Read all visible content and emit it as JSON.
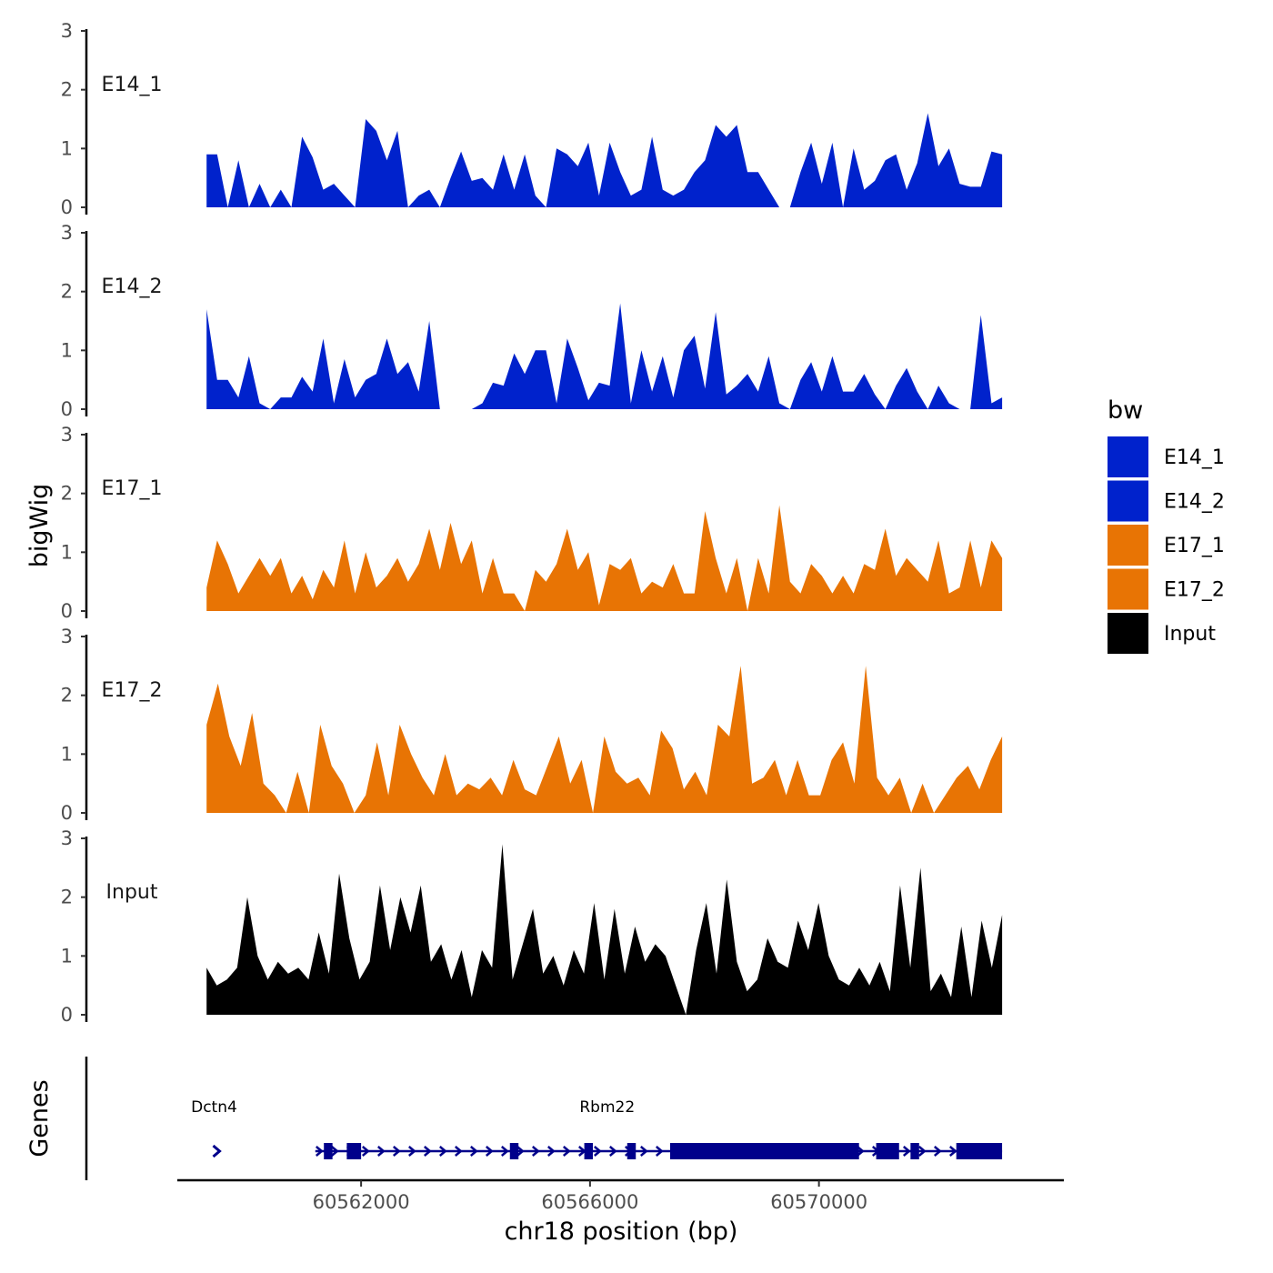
{
  "chart_data": {
    "type": "area",
    "y_axis_title": "bigWig",
    "x_axis_title": "chr18 position (bp)",
    "xlim": [
      60558900,
      60574200
    ],
    "x_ticks": [
      60562000,
      60566000,
      60570000
    ],
    "x_tick_labels": [
      "60562000",
      "60566000",
      "60570000"
    ],
    "y_ticks": [
      0,
      1,
      2,
      3
    ],
    "y_tick_labels": [
      "0",
      "1",
      "2",
      "3"
    ],
    "ylim": [
      0,
      3
    ],
    "data_x_range": [
      60559300,
      60573200
    ],
    "legend": {
      "title": "bw",
      "entries": [
        {
          "label": "E14_1",
          "color": "#0022CC"
        },
        {
          "label": "E14_2",
          "color": "#0022CC"
        },
        {
          "label": "E17_1",
          "color": "#E87404"
        },
        {
          "label": "E17_2",
          "color": "#E87404"
        },
        {
          "label": "Input",
          "color": "#000000"
        }
      ]
    },
    "tracks": [
      {
        "name": "E14_1",
        "color": "#0022CC",
        "values": [
          0.9,
          0.9,
          0,
          0.8,
          0,
          0.4,
          0,
          0.3,
          0,
          1.2,
          0.85,
          0.3,
          0.4,
          0.2,
          0,
          1.5,
          1.3,
          0.8,
          1.3,
          0,
          0.2,
          0.3,
          0,
          0.5,
          0.95,
          0.45,
          0.5,
          0.3,
          0.9,
          0.3,
          0.9,
          0.2,
          0,
          1.0,
          0.9,
          0.7,
          1.1,
          0.2,
          1.1,
          0.6,
          0.2,
          0.3,
          1.2,
          0.3,
          0.2,
          0.3,
          0.6,
          0.8,
          1.4,
          1.2,
          1.4,
          0.6,
          0.6,
          0.3,
          0,
          0,
          0.6,
          1.1,
          0.4,
          1.1,
          0,
          1.0,
          0.3,
          0.45,
          0.8,
          0.9,
          0.3,
          0.75,
          1.6,
          0.7,
          1.0,
          0.4,
          0.35,
          0.35,
          0.95,
          0.9
        ]
      },
      {
        "name": "E14_2",
        "color": "#0022CC",
        "values": [
          1.7,
          0.5,
          0.5,
          0.2,
          0.9,
          0.1,
          0,
          0.2,
          0.2,
          0.55,
          0.3,
          1.2,
          0.1,
          0.85,
          0.2,
          0.5,
          0.6,
          1.2,
          0.6,
          0.8,
          0.3,
          1.5,
          0,
          0,
          0,
          0,
          0.1,
          0.45,
          0.4,
          0.95,
          0.6,
          1.0,
          1.0,
          0.1,
          1.2,
          0.7,
          0.15,
          0.45,
          0.4,
          1.8,
          0.1,
          1.0,
          0.3,
          0.9,
          0.2,
          1.0,
          1.25,
          0.35,
          1.65,
          0.25,
          0.4,
          0.6,
          0.3,
          0.9,
          0.1,
          0,
          0.5,
          0.8,
          0.3,
          0.9,
          0.3,
          0.3,
          0.6,
          0.25,
          0,
          0.4,
          0.7,
          0.3,
          0,
          0.4,
          0.1,
          0,
          0,
          1.6,
          0.1,
          0.2
        ]
      },
      {
        "name": "E17_1",
        "color": "#E87404",
        "values": [
          0.4,
          1.2,
          0.8,
          0.3,
          0.6,
          0.9,
          0.6,
          0.9,
          0.3,
          0.6,
          0.2,
          0.7,
          0.4,
          1.2,
          0.3,
          1.0,
          0.4,
          0.6,
          0.9,
          0.5,
          0.8,
          1.4,
          0.7,
          1.5,
          0.8,
          1.2,
          0.3,
          0.9,
          0.3,
          0.3,
          0,
          0.7,
          0.5,
          0.8,
          1.4,
          0.7,
          1.0,
          0.1,
          0.8,
          0.7,
          0.9,
          0.3,
          0.5,
          0.4,
          0.8,
          0.3,
          0.3,
          1.7,
          0.9,
          0.3,
          0.9,
          0,
          0.9,
          0.3,
          1.8,
          0.5,
          0.3,
          0.8,
          0.6,
          0.3,
          0.6,
          0.3,
          0.8,
          0.7,
          1.4,
          0.6,
          0.9,
          0.7,
          0.5,
          1.2,
          0.3,
          0.4,
          1.2,
          0.4,
          1.2,
          0.9
        ]
      },
      {
        "name": "E17_2",
        "color": "#E87404",
        "values": [
          1.5,
          2.2,
          1.3,
          0.8,
          1.7,
          0.5,
          0.3,
          0,
          0.7,
          0,
          1.5,
          0.8,
          0.5,
          0,
          0.3,
          1.2,
          0.3,
          1.5,
          1.0,
          0.6,
          0.3,
          1.0,
          0.3,
          0.5,
          0.4,
          0.6,
          0.3,
          0.9,
          0.4,
          0.3,
          0.8,
          1.3,
          0.5,
          0.9,
          0,
          1.3,
          0.7,
          0.5,
          0.6,
          0.3,
          1.4,
          1.1,
          0.4,
          0.7,
          0.3,
          1.5,
          1.3,
          2.5,
          0.5,
          0.6,
          0.9,
          0.3,
          0.9,
          0.3,
          0.3,
          0.9,
          1.2,
          0.5,
          2.5,
          0.6,
          0.3,
          0.6,
          0,
          0.5,
          0,
          0.3,
          0.6,
          0.8,
          0.4,
          0.9,
          1.3
        ]
      },
      {
        "name": "Input",
        "color": "#000000",
        "values": [
          0.8,
          0.5,
          0.6,
          0.8,
          2.0,
          1.0,
          0.6,
          0.9,
          0.7,
          0.8,
          0.6,
          1.4,
          0.7,
          2.4,
          1.3,
          0.6,
          0.9,
          2.2,
          1.1,
          2.0,
          1.4,
          2.2,
          0.9,
          1.2,
          0.6,
          1.1,
          0.3,
          1.1,
          0.8,
          2.9,
          0.6,
          1.2,
          1.8,
          0.7,
          1.0,
          0.5,
          1.1,
          0.7,
          1.9,
          0.6,
          1.8,
          0.7,
          1.5,
          0.9,
          1.2,
          1.0,
          0.5,
          0,
          1.1,
          1.9,
          0.7,
          2.3,
          0.9,
          0.4,
          0.6,
          1.3,
          0.9,
          0.8,
          1.6,
          1.1,
          1.9,
          1.0,
          0.6,
          0.5,
          0.8,
          0.5,
          0.9,
          0.4,
          2.2,
          0.8,
          2.5,
          0.4,
          0.7,
          0.3,
          1.5,
          0.3,
          1.6,
          0.8,
          1.7
        ]
      }
    ],
    "genes": {
      "label": "Genes",
      "features": [
        {
          "name": "Dctn4",
          "start": 60559400,
          "end": 60559500,
          "strand": "+"
        },
        {
          "name": "Rbm22",
          "start": 60561200,
          "end": 60573200,
          "strand": "+"
        }
      ],
      "exons": [
        [
          60561350,
          60561500
        ],
        [
          60561750,
          60562000
        ],
        [
          60564600,
          60564750
        ],
        [
          60565900,
          60566050
        ],
        [
          60566650,
          60566800
        ],
        [
          60567400,
          60570700
        ],
        [
          60571000,
          60571400
        ],
        [
          60571600,
          60571750
        ],
        [
          60572400,
          60573200
        ]
      ]
    }
  }
}
